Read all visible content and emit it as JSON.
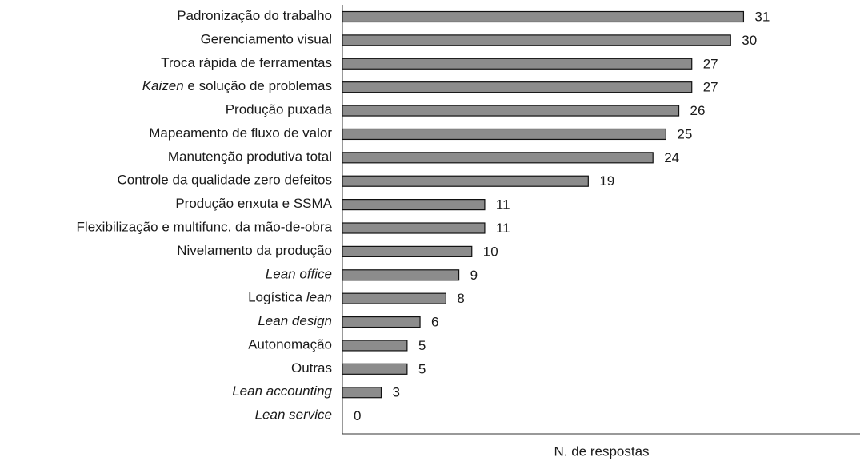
{
  "chart_data": {
    "type": "bar",
    "orientation": "horizontal",
    "categories": [
      "Padronização do trabalho",
      "Gerenciamento visual",
      "Troca rápida de ferramentas",
      "Kaizen e solução de problemas",
      "Produção puxada",
      "Mapeamento de fluxo de valor",
      "Manutenção produtiva total",
      "Controle da qualidade zero defeitos",
      "Produção enxuta e SSMA",
      "Flexibilização e multifunc. da mão-de-obra",
      "Nivelamento da produção",
      "Lean office",
      "Logística lean",
      "Lean design",
      "Autonomação",
      "Outras",
      "Lean accounting",
      "Lean service"
    ],
    "values": [
      31,
      30,
      27,
      27,
      26,
      25,
      24,
      19,
      11,
      11,
      10,
      9,
      8,
      6,
      5,
      5,
      3,
      0
    ],
    "color": "#8c8c8c",
    "xlabel": "N. de respostas",
    "xlim": [
      0,
      40
    ],
    "italic_words": [
      "Kaizen",
      "Lean",
      "lean",
      "office",
      "design",
      "accounting",
      "service"
    ]
  }
}
